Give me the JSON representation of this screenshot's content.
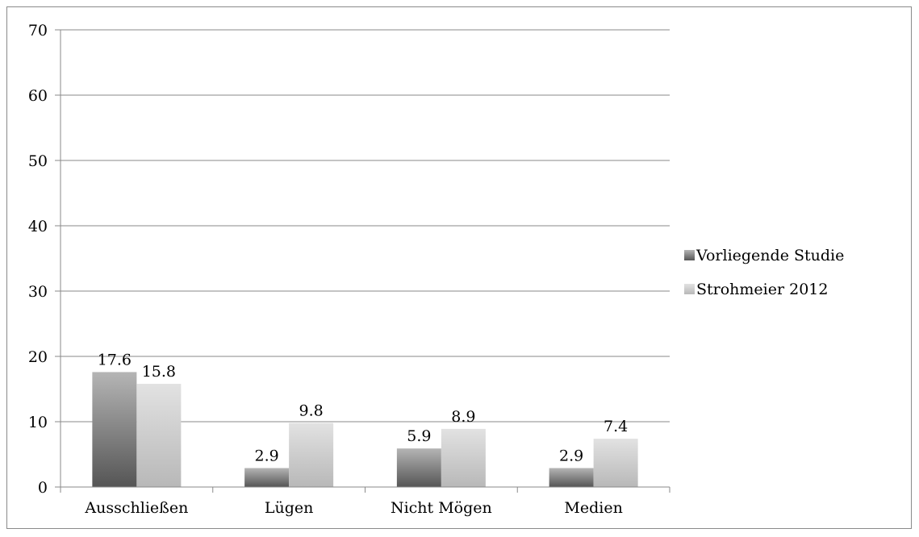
{
  "chart_data": {
    "type": "bar",
    "categories": [
      "Ausschließen",
      "Lügen",
      "Nicht Mögen",
      "Medien"
    ],
    "series": [
      {
        "name": "Vorliegende Studie",
        "values": [
          17.6,
          2.9,
          5.9,
          2.9
        ],
        "labels": [
          "17.6",
          "2.9",
          "5.9",
          "2.9"
        ],
        "color": "#6b6b6b"
      },
      {
        "name": "Strohmeier 2012",
        "values": [
          15.8,
          9.8,
          8.9,
          7.4
        ],
        "labels": [
          "15.8",
          "9.8",
          "8.9",
          "7.4"
        ],
        "color": "#cfcfcf"
      }
    ],
    "y_ticks": [
      "0",
      "10",
      "20",
      "30",
      "40",
      "50",
      "60",
      "70"
    ],
    "ylim": [
      0,
      70
    ],
    "grid": true,
    "legend_position": "right"
  }
}
